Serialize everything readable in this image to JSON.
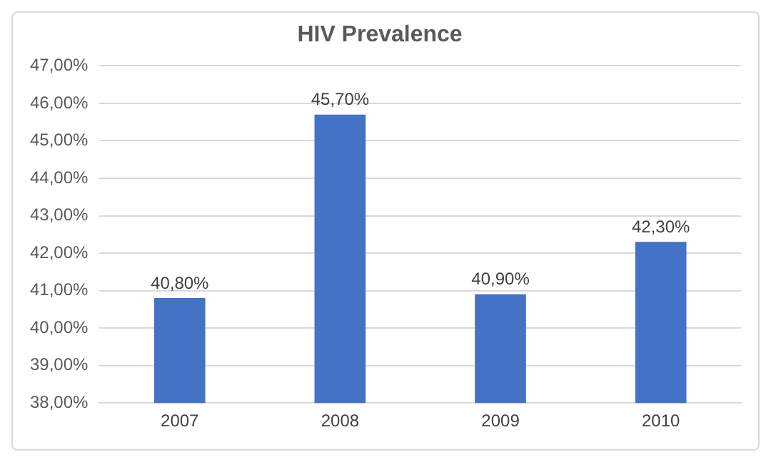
{
  "chart_data": {
    "type": "bar",
    "title": "HIV Prevalence",
    "categories": [
      "2007",
      "2008",
      "2009",
      "2010"
    ],
    "values": [
      40.8,
      45.7,
      40.9,
      42.3
    ],
    "value_labels": [
      "40,80%",
      "45,70%",
      "40,90%",
      "42,30%"
    ],
    "color": "#4472c4",
    "ylim": [
      38,
      47
    ],
    "yticks": [
      {
        "value": 38,
        "label": "38,00%"
      },
      {
        "value": 39,
        "label": "39,00%"
      },
      {
        "value": 40,
        "label": "40,00%"
      },
      {
        "value": 41,
        "label": "41,00%"
      },
      {
        "value": 42,
        "label": "42,00%"
      },
      {
        "value": 43,
        "label": "43,00%"
      },
      {
        "value": 44,
        "label": "44,00%"
      },
      {
        "value": 45,
        "label": "45,00%"
      },
      {
        "value": 46,
        "label": "46,00%"
      },
      {
        "value": 47,
        "label": "47,00%"
      }
    ],
    "grid": "y",
    "legend": false
  }
}
